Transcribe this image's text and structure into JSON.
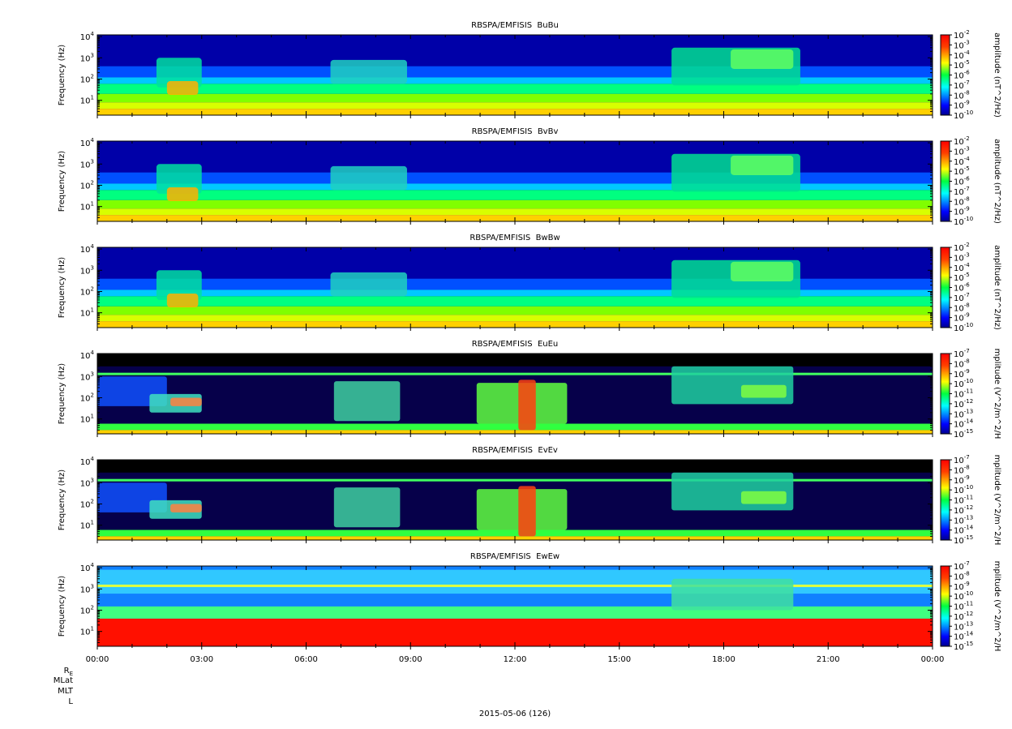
{
  "chart_data": {
    "type": "heatmap",
    "xaxis": {
      "tick_labels": [
        "00:00",
        "03:00",
        "06:00",
        "09:00",
        "12:00",
        "15:00",
        "18:00",
        "21:00",
        "00:00"
      ],
      "range_hours": [
        0,
        24
      ],
      "minor_tick_hours": 1
    },
    "date_label": "2015-05-06 (126)",
    "ephemeris_labels": [
      "R",
      "MLat",
      "MLT",
      "L"
    ],
    "ephemeris_subscript": "E",
    "ylabel": "Frequency (Hz)",
    "yaxis": {
      "scale": "log",
      "range_hz": [
        2,
        12000
      ],
      "tick_exponents": [
        1,
        2,
        3,
        4
      ]
    },
    "panels": [
      {
        "title": "RBSPA/EMFISIS  BuBu",
        "component": "B",
        "colorbar_label": "amplitude (nT^2/Hz)",
        "colorbar_exponents": [
          -2,
          -3,
          -4,
          -5,
          -6,
          -7,
          -8,
          -9,
          -10
        ]
      },
      {
        "title": "RBSPA/EMFISIS  BvBv",
        "component": "B",
        "colorbar_label": "amplitude (nT^2/Hz)",
        "colorbar_exponents": [
          -2,
          -3,
          -4,
          -5,
          -6,
          -7,
          -8,
          -9,
          -10
        ]
      },
      {
        "title": "RBSPA/EMFISIS  BwBw",
        "component": "B",
        "colorbar_label": "amplitude (nT^2/Hz)",
        "colorbar_exponents": [
          -2,
          -3,
          -4,
          -5,
          -6,
          -7,
          -8,
          -9,
          -10
        ]
      },
      {
        "title": "RBSPA/EMFISIS  EuEu",
        "component": "E",
        "colorbar_label": "mplitude (V^2/m^2/H",
        "colorbar_exponents": [
          -7,
          -8,
          -9,
          -10,
          -11,
          -12,
          -13,
          -14,
          -15
        ]
      },
      {
        "title": "RBSPA/EMFISIS  EvEv",
        "component": "E",
        "colorbar_label": "mplitude (V^2/m^2/H",
        "colorbar_exponents": [
          -7,
          -8,
          -9,
          -10,
          -11,
          -12,
          -13,
          -14,
          -15
        ]
      },
      {
        "title": "RBSPA/EMFISIS  EwEw",
        "component": "Ew",
        "colorbar_label": "mplitude (V^2/m^2/H",
        "colorbar_exponents": [
          -7,
          -8,
          -9,
          -10,
          -11,
          -12,
          -13,
          -14,
          -15
        ]
      }
    ]
  }
}
